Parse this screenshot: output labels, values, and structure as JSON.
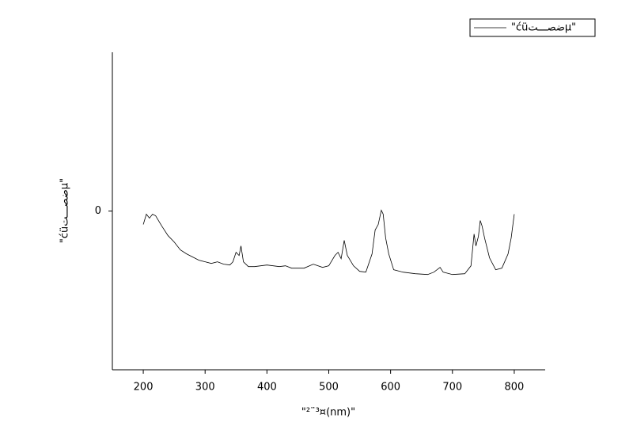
{
  "chart_data": {
    "type": "line",
    "x_label": "\"²¨³¤(nm)\"",
    "y_label": "\"ćüضصـــتµ\"",
    "x": [
      200,
      205,
      210,
      215,
      220,
      230,
      240,
      250,
      260,
      270,
      280,
      290,
      300,
      310,
      320,
      330,
      340,
      345,
      350,
      355,
      358,
      362,
      370,
      380,
      400,
      420,
      430,
      440,
      460,
      475,
      490,
      500,
      510,
      515,
      520,
      525,
      530,
      540,
      550,
      560,
      570,
      575,
      580,
      585,
      588,
      592,
      597,
      605,
      620,
      640,
      660,
      670,
      680,
      685,
      700,
      720,
      730,
      735,
      738,
      742,
      745,
      748,
      752,
      760,
      770,
      780,
      790,
      795,
      800
    ],
    "series": [
      {
        "name": "\"ćüضصـــتµ\"",
        "color": "#000000",
        "values": [
          -0.085,
          -0.02,
          -0.045,
          -0.02,
          -0.03,
          -0.095,
          -0.155,
          -0.195,
          -0.245,
          -0.27,
          -0.29,
          -0.31,
          -0.32,
          -0.33,
          -0.32,
          -0.335,
          -0.34,
          -0.32,
          -0.26,
          -0.28,
          -0.22,
          -0.32,
          -0.35,
          -0.35,
          -0.34,
          -0.35,
          -0.345,
          -0.36,
          -0.36,
          -0.335,
          -0.355,
          -0.345,
          -0.28,
          -0.26,
          -0.3,
          -0.185,
          -0.28,
          -0.345,
          -0.38,
          -0.385,
          -0.27,
          -0.12,
          -0.085,
          0.005,
          -0.02,
          -0.17,
          -0.27,
          -0.37,
          -0.385,
          -0.395,
          -0.4,
          -0.385,
          -0.355,
          -0.385,
          -0.4,
          -0.395,
          -0.345,
          -0.145,
          -0.22,
          -0.16,
          -0.06,
          -0.095,
          -0.17,
          -0.295,
          -0.37,
          -0.36,
          -0.27,
          -0.17,
          -0.02
        ]
      }
    ],
    "xlim": [
      150,
      850
    ],
    "xticks": [
      200,
      300,
      400,
      500,
      600,
      700,
      800
    ],
    "ylim": [
      -1,
      1
    ],
    "yticks": [
      0
    ]
  }
}
